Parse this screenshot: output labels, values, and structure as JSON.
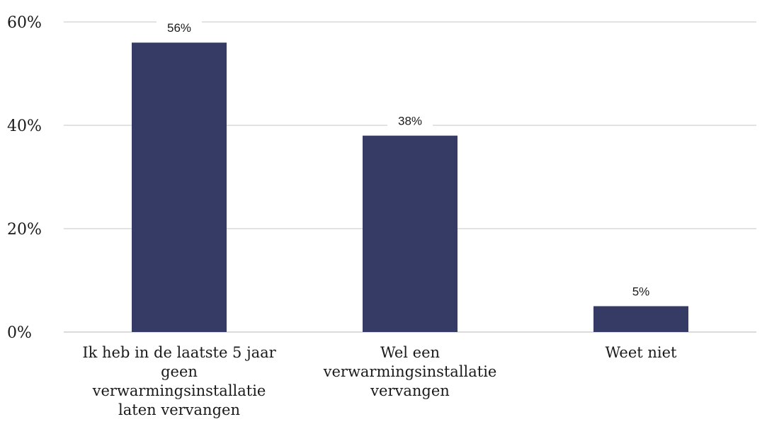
{
  "chart_data": {
    "type": "bar",
    "categories": [
      [
        "Ik heb in de laatste 5 jaar",
        "geen",
        "verwarmingsinstallatie",
        "laten vervangen"
      ],
      [
        "Wel een",
        "verwarmingsinstallatie",
        "vervangen"
      ],
      [
        "Weet niet"
      ]
    ],
    "values": [
      56,
      38,
      5
    ],
    "data_labels": [
      "56%",
      "38%",
      "5%"
    ],
    "ylim": [
      0,
      60
    ],
    "yticks": [
      0,
      20,
      40,
      60
    ],
    "ytick_labels": [
      "0%",
      "20%",
      "40%",
      "60%"
    ],
    "grid": true,
    "bar_color": "#363b66",
    "title": "",
    "xlabel": "",
    "ylabel": ""
  }
}
